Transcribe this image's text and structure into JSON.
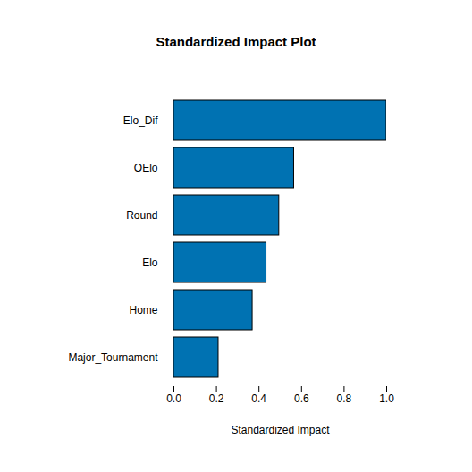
{
  "chart_data": {
    "type": "bar",
    "title": "Standardized Impact Plot",
    "orientation": "horizontal",
    "x_label": "Standardized Impact",
    "categories": [
      "Elo_Dif",
      "OElo",
      "Round",
      "Elo",
      "Home",
      "Major_Tournament"
    ],
    "values": [
      1.0,
      0.565,
      0.495,
      0.435,
      0.37,
      0.21
    ],
    "color": "#0072b2",
    "xlim": [
      0,
      1
    ],
    "xticks": [
      {
        "value": 0,
        "label": "0.0"
      },
      0.2,
      0.4,
      0.6,
      0.8,
      {
        "value": 1,
        "label": "1.0"
      }
    ],
    "grid": false
  }
}
